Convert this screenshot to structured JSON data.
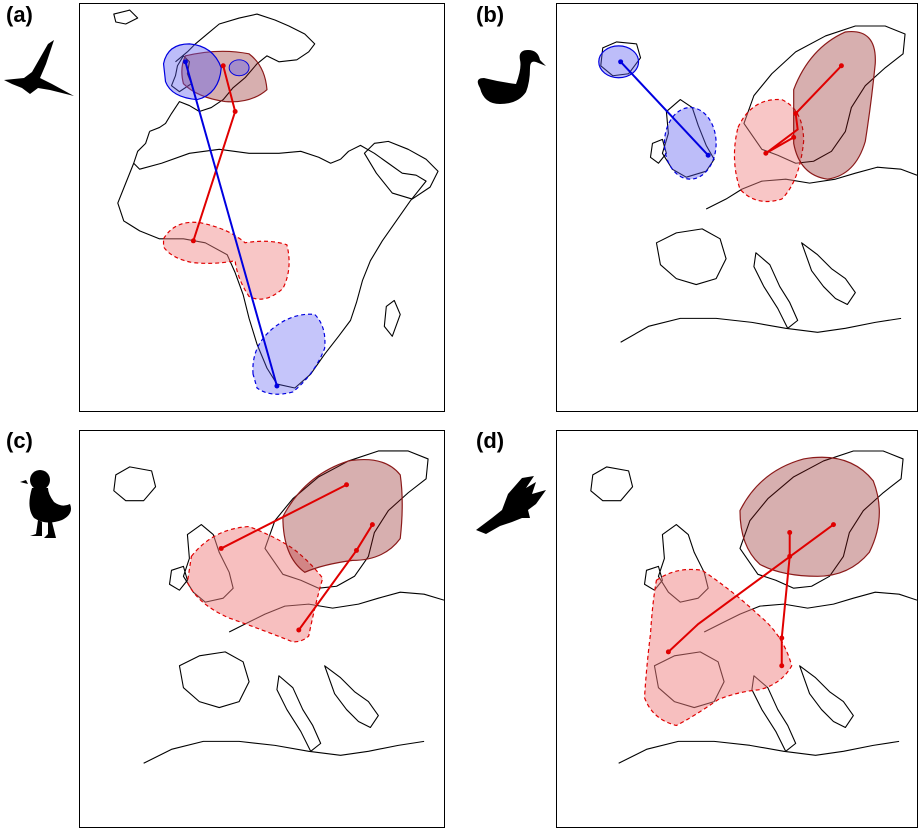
{
  "colors": {
    "winter_range": "#f08080",
    "breeding_range": "#8b1a1a",
    "blue_range": "#5a5af0",
    "red_track": "#e00000",
    "blue_track": "#0000e0"
  },
  "panels": [
    {
      "label": "(a)",
      "bird_icon": "tern-icon"
    },
    {
      "label": "(b)",
      "bird_icon": "swan-icon"
    },
    {
      "label": "(c)",
      "bird_icon": "duck-icon"
    },
    {
      "label": "(d)",
      "bird_icon": "flying-bird-icon"
    }
  ]
}
